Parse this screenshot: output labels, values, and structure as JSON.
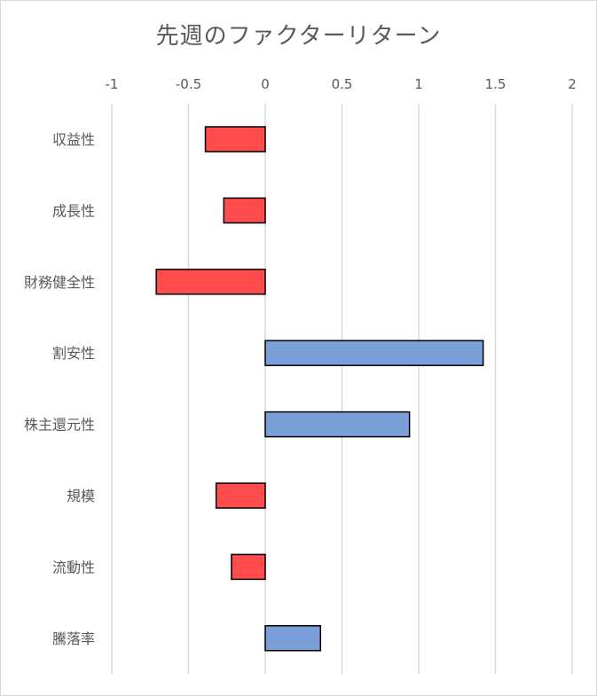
{
  "chart_data": {
    "type": "bar",
    "orientation": "horizontal",
    "title": "先週のファクターリターン",
    "categories": [
      "収益性",
      "成長性",
      "財務健全性",
      "割安性",
      "株主還元性",
      "規模",
      "流動性",
      "騰落率"
    ],
    "values": [
      -0.39,
      -0.27,
      -0.71,
      1.42,
      0.94,
      -0.32,
      -0.22,
      0.36
    ],
    "xlim": [
      -1,
      2
    ],
    "xticks": [
      -1,
      -0.5,
      0,
      0.5,
      1,
      1.5,
      2
    ],
    "xtick_labels": [
      "-1",
      "-0.5",
      "0",
      "0.5",
      "1",
      "1.5",
      "2"
    ],
    "x_axis_position": "top",
    "grid": true,
    "legend": false,
    "colors": {
      "positive": "#7b9fd8",
      "negative": "#ff4b4b"
    }
  }
}
